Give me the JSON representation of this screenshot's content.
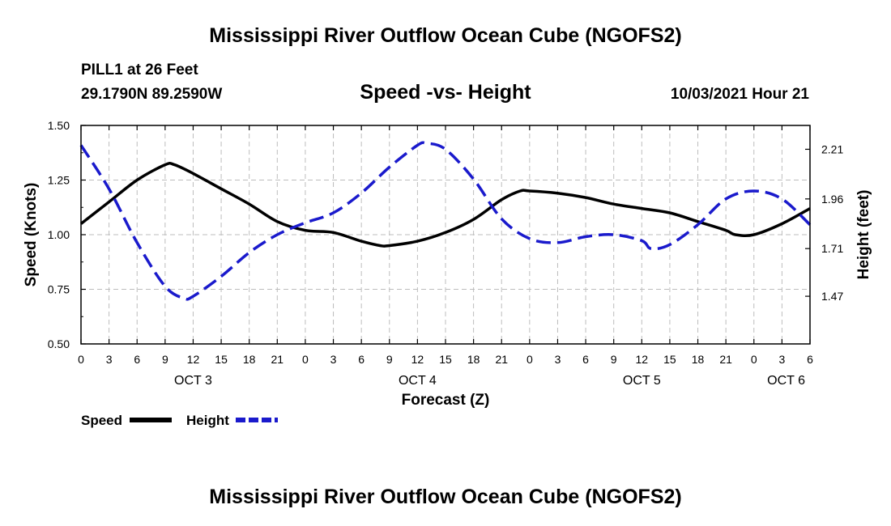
{
  "page": {
    "title": "Mississippi River Outflow Ocean Cube (NGOFS2)",
    "footer_title": "Mississippi River Outflow Ocean Cube (NGOFS2)",
    "station": "PILL1 at 26 Feet",
    "coordinates": "29.1790N  89.2590W",
    "subtitle": "Speed -vs- Height",
    "timestamp": "10/03/2021 Hour 21"
  },
  "chart_data": {
    "type": "line",
    "xlabel": "Forecast (Z)",
    "ylabel": "Speed (Knots)",
    "y2label": "Height (feet)",
    "grid": true,
    "x_range_hours": [
      0,
      78
    ],
    "x_ticks": [
      0,
      3,
      6,
      9,
      12,
      15,
      18,
      21,
      24,
      27,
      30,
      33,
      36,
      39,
      42,
      45,
      48,
      51,
      54,
      57,
      60,
      63,
      66,
      69,
      72,
      75,
      78
    ],
    "x_tick_labels": [
      "0",
      "3",
      "6",
      "9",
      "12",
      "15",
      "18",
      "21",
      "0",
      "3",
      "6",
      "9",
      "12",
      "15",
      "18",
      "21",
      "0",
      "3",
      "6",
      "9",
      "12",
      "15",
      "18",
      "21",
      "0",
      "3",
      "6"
    ],
    "day_labels": [
      {
        "hour": 12,
        "label": "OCT 3"
      },
      {
        "hour": 36,
        "label": "OCT 4"
      },
      {
        "hour": 60,
        "label": "OCT 5"
      },
      {
        "hour": 78,
        "label": "OCT 6"
      }
    ],
    "ylim": [
      0.5,
      1.5
    ],
    "y_ticks": [
      0.5,
      0.75,
      1.0,
      1.25,
      1.5
    ],
    "y_tick_labels": [
      "0.50",
      "0.75",
      "1.00",
      "1.25",
      "1.50"
    ],
    "y2lim": [
      1.23,
      2.33
    ],
    "y2_ticks": [
      1.47,
      1.71,
      1.96,
      2.21
    ],
    "y2_tick_labels": [
      "1.47",
      "1.71",
      "1.96",
      "2.21"
    ],
    "series": [
      {
        "name": "Speed",
        "axis": "left",
        "color": "#000000",
        "dash": false,
        "x": [
          0,
          3,
          6,
          9,
          10,
          12,
          15,
          18,
          21,
          24,
          27,
          30,
          32,
          33,
          36,
          39,
          42,
          45,
          47,
          48,
          51,
          54,
          57,
          60,
          63,
          66,
          69,
          70,
          72,
          75,
          78
        ],
        "y": [
          1.05,
          1.15,
          1.25,
          1.32,
          1.32,
          1.28,
          1.21,
          1.14,
          1.06,
          1.02,
          1.01,
          0.97,
          0.95,
          0.95,
          0.97,
          1.01,
          1.07,
          1.16,
          1.2,
          1.2,
          1.19,
          1.17,
          1.14,
          1.12,
          1.1,
          1.06,
          1.02,
          1.0,
          1.0,
          1.05,
          1.12
        ]
      },
      {
        "name": "Height",
        "axis": "right",
        "color": "#1a1acc",
        "dash": true,
        "x": [
          0,
          3,
          6,
          9,
          11,
          12,
          15,
          18,
          21,
          24,
          27,
          30,
          33,
          36,
          37,
          39,
          42,
          45,
          48,
          51,
          54,
          57,
          60,
          61,
          63,
          66,
          69,
          72,
          75,
          78
        ],
        "y": [
          2.23,
          2.01,
          1.74,
          1.52,
          1.46,
          1.47,
          1.57,
          1.69,
          1.78,
          1.84,
          1.89,
          1.99,
          2.12,
          2.23,
          2.24,
          2.21,
          2.06,
          1.86,
          1.76,
          1.74,
          1.77,
          1.78,
          1.75,
          1.71,
          1.73,
          1.83,
          1.96,
          2.0,
          1.96,
          1.83
        ]
      }
    ],
    "legend": {
      "placement": "bottom-left",
      "entries": [
        "Speed",
        "Height"
      ]
    }
  }
}
